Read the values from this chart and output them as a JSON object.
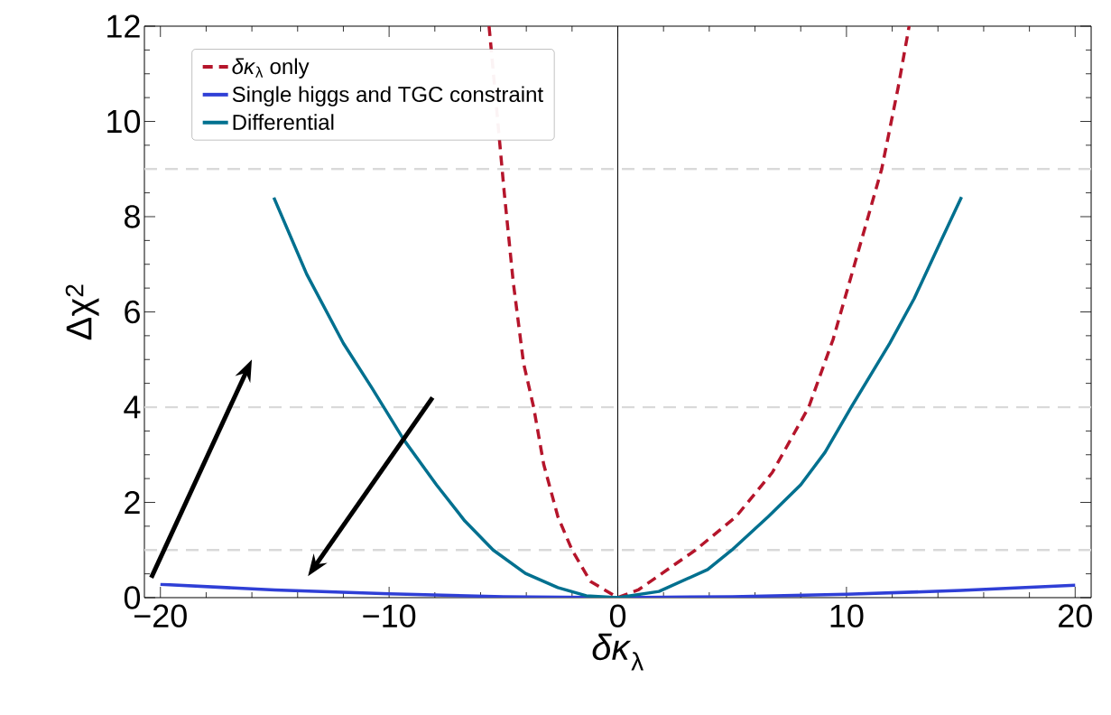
{
  "chart_data": {
    "type": "line",
    "xlabel": "*δκ*$_{λ}$",
    "ylabel": "Δχ$^{2}$",
    "xlim": [
      -20.7,
      20.7
    ],
    "ylim": [
      0,
      12
    ],
    "xticks": [
      {
        "value": -20,
        "label": "−20"
      },
      {
        "value": -10,
        "label": "−10"
      },
      0,
      10,
      20
    ],
    "yticks": [
      0,
      2,
      4,
      6,
      8,
      10,
      12
    ],
    "legend": "top left",
    "series": [
      {
        "name": "*δκ*$_{λ}$ only",
        "color": "#b5152b",
        "line_style": "dashed",
        "x": [
          -5.63,
          -5.54,
          -4.96,
          -4.57,
          -4.12,
          -3.68,
          -3.24,
          -2.62,
          -2.0,
          -1.2,
          0,
          0.92,
          3.4,
          5.17,
          6.76,
          8.35,
          9.42,
          10.48,
          11.54,
          12.25,
          12.74
        ],
        "values": [
          12,
          11.54,
          8.48,
          6.62,
          4.92,
          4.0,
          2.8,
          1.7,
          1.0,
          0.34,
          0,
          0.17,
          1.0,
          1.7,
          2.63,
          4.0,
          5.43,
          7.21,
          9.0,
          10.69,
          12
        ]
      },
      {
        "name": "Single higgs and TGC constraint",
        "color": "#2f3fd6",
        "line_style": "solid",
        "x": [
          -20,
          -15,
          -10,
          -5,
          0,
          5,
          10,
          15,
          20
        ],
        "values": [
          0.28,
          0.16,
          0.08,
          0.02,
          0,
          0.02,
          0.07,
          0.15,
          0.26
        ]
      },
      {
        "name": "Differential",
        "color": "#00708f",
        "line_style": "solid",
        "x": [
          -15.04,
          -13.6,
          -12.0,
          -10.76,
          -9.35,
          -7.93,
          -6.69,
          -5.45,
          -4.04,
          -2.62,
          -1.38,
          0,
          1.8,
          3.93,
          4.99,
          6.58,
          8.0,
          9.06,
          10.21,
          11.89,
          12.96,
          14.1,
          15.03
        ],
        "values": [
          8.4,
          6.79,
          5.34,
          4.41,
          3.31,
          2.37,
          1.61,
          1.0,
          0.51,
          0.21,
          0.04,
          0,
          0.13,
          0.59,
          1.0,
          1.7,
          2.37,
          3.05,
          4.0,
          5.34,
          6.28,
          7.46,
          8.41
        ]
      }
    ],
    "ref_lines": [
      {
        "axis": "y",
        "value": 1,
        "color": "#d9d9d9",
        "line_style": "dashed"
      },
      {
        "axis": "y",
        "value": 4,
        "color": "#d9d9d9",
        "line_style": "dashed"
      },
      {
        "axis": "y",
        "value": 9,
        "color": "#d9d9d9",
        "line_style": "dashed"
      },
      {
        "axis": "x",
        "value": 0,
        "color": "#000000",
        "line_style": "solid"
      }
    ]
  }
}
